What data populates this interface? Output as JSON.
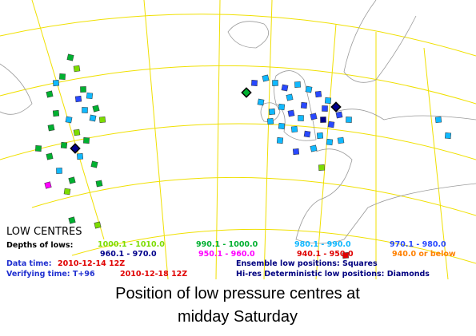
{
  "legend": {
    "title": "LOW CENTRES",
    "subtitle": "Depths of lows:",
    "ranges": [
      {
        "label": "1000.1 - 1010.0",
        "color": "#7cdc00"
      },
      {
        "label": "990.1 - 1000.0",
        "color": "#00b030"
      },
      {
        "label": "980.1 - 990.0",
        "color": "#10b8ff"
      },
      {
        "label": "970.1 - 980.0",
        "color": "#2848ff"
      },
      {
        "label": "960.1 - 970.0",
        "color": "#00008b"
      },
      {
        "label": "950.1 - 960.0",
        "color": "#ff00ff"
      },
      {
        "label": "940.1 - 950.0",
        "color": "#e00000"
      },
      {
        "label": "940.0 or below",
        "color": "#ff8000"
      }
    ]
  },
  "info": {
    "data_time_label": "Data time:",
    "data_time": "2010-12-14 12Z",
    "verifying_label": "Verifying time: T+96",
    "verifying_time": "2010-12-18 12Z",
    "ensemble": "Ensemble low positions: Squares",
    "deterministic": "Hi-res Deterministic low positions: Diamonds"
  },
  "caption": [
    "Position of low pressure centres at",
    "midday Saturday"
  ]
}
